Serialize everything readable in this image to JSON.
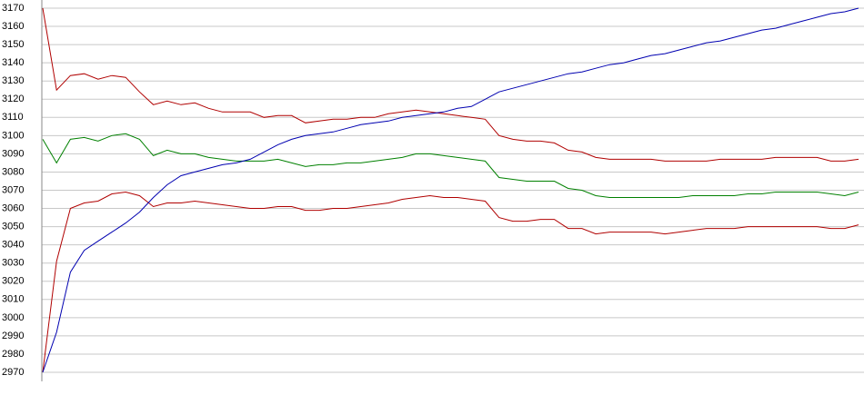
{
  "chart_data": {
    "type": "line",
    "categories": [
      null,
      null,
      null,
      null,
      null,
      null,
      null,
      null,
      null,
      null,
      null,
      null,
      null,
      null,
      null,
      null,
      null,
      null,
      null,
      null,
      null,
      null,
      null,
      null,
      null,
      null,
      null,
      null,
      null,
      null,
      null,
      null,
      null,
      null,
      null,
      null,
      null,
      null,
      null,
      null,
      null,
      null,
      null,
      null,
      null,
      null,
      null,
      null,
      null,
      null,
      null,
      null,
      null,
      null,
      null,
      null,
      null,
      null,
      null,
      null
    ],
    "ylim": [
      2970,
      3170
    ],
    "yticks": [
      2970,
      2980,
      2990,
      3000,
      3010,
      3020,
      3030,
      3040,
      3050,
      3060,
      3070,
      3080,
      3090,
      3100,
      3110,
      3120,
      3130,
      3140,
      3150,
      3160,
      3170
    ],
    "grid": true,
    "series": [
      {
        "color": "#b00000",
        "values": [
          3170,
          3125,
          3133,
          3134,
          3131,
          3133,
          3132,
          3124,
          3117,
          3119,
          3117,
          3118,
          3115,
          3113,
          3113,
          3113,
          3110,
          3111,
          3111,
          3107,
          3108,
          3109,
          3109,
          3110,
          3110,
          3112,
          3113,
          3114,
          3113,
          3112,
          3111,
          3110,
          3109,
          3100,
          3098,
          3097,
          3097,
          3096,
          3092,
          3091,
          3088,
          3087,
          3087,
          3087,
          3087,
          3086,
          3086,
          3086,
          3086,
          3087,
          3087,
          3087,
          3087,
          3088,
          3088,
          3088,
          3088,
          3086,
          3086,
          3087
        ]
      },
      {
        "color": "#008000",
        "values": [
          3098,
          3085,
          3098,
          3099,
          3097,
          3100,
          3101,
          3098,
          3089,
          3092,
          3090,
          3090,
          3088,
          3087,
          3086,
          3086,
          3086,
          3087,
          3085,
          3083,
          3084,
          3084,
          3085,
          3085,
          3086,
          3087,
          3088,
          3090,
          3090,
          3089,
          3088,
          3087,
          3086,
          3077,
          3076,
          3075,
          3075,
          3075,
          3071,
          3070,
          3067,
          3066,
          3066,
          3066,
          3066,
          3066,
          3066,
          3067,
          3067,
          3067,
          3067,
          3068,
          3068,
          3069,
          3069,
          3069,
          3069,
          3068,
          3067,
          3069
        ]
      },
      {
        "color": "#b00000",
        "values": [
          2970,
          3031,
          3060,
          3063,
          3064,
          3068,
          3069,
          3067,
          3061,
          3063,
          3063,
          3064,
          3063,
          3062,
          3061,
          3060,
          3060,
          3061,
          3061,
          3059,
          3059,
          3060,
          3060,
          3061,
          3062,
          3063,
          3065,
          3066,
          3067,
          3066,
          3066,
          3065,
          3064,
          3055,
          3053,
          3053,
          3054,
          3054,
          3049,
          3049,
          3046,
          3047,
          3047,
          3047,
          3047,
          3046,
          3047,
          3048,
          3049,
          3049,
          3049,
          3050,
          3050,
          3050,
          3050,
          3050,
          3050,
          3049,
          3049,
          3051
        ]
      },
      {
        "color": "#0000b0",
        "values": [
          2970,
          2992,
          3025,
          3037,
          3042,
          3047,
          3052,
          3058,
          3066,
          3073,
          3078,
          3080,
          3082,
          3084,
          3085,
          3087,
          3091,
          3095,
          3098,
          3100,
          3101,
          3102,
          3104,
          3106,
          3107,
          3108,
          3110,
          3111,
          3112,
          3113,
          3115,
          3116,
          3120,
          3124,
          3126,
          3128,
          3130,
          3132,
          3134,
          3135,
          3137,
          3139,
          3140,
          3142,
          3144,
          3145,
          3147,
          3149,
          3151,
          3152,
          3154,
          3156,
          3158,
          3159,
          3161,
          3163,
          3165,
          3167,
          3168,
          3170
        ]
      }
    ]
  }
}
